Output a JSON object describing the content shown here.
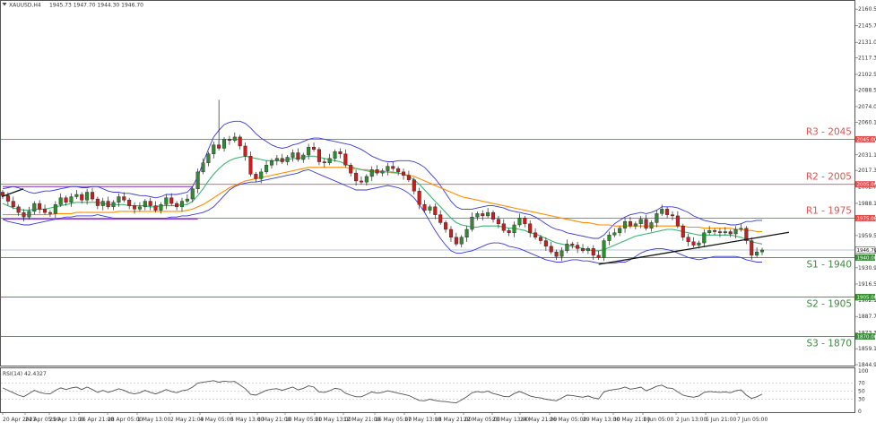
{
  "header": {
    "symbol": "XAUUSD,H4",
    "ohlc": "1945.73 1947.70 1944.30 1946.70"
  },
  "rsi_panel": {
    "label": "RSI(14) 42.4327"
  },
  "colors": {
    "candle_up": "#2e8b2e",
    "candle_down": "#c81e1e",
    "bollinger": "#3a3ad0",
    "ma_fast": "#3cb371",
    "ma_slow": "#ff8c00",
    "resistance": "#e05050",
    "support": "#3a8a3a",
    "range_line": "#7a2fbf",
    "trendline": "#111111",
    "rsi_line": "#505050"
  },
  "chart_data": [
    {
      "type": "candlestick",
      "instrument": "XAUUSD",
      "timeframe": "H4",
      "last_price": 1946.7,
      "x_tick_labels": [
        "20 Apr 2023",
        "24 Apr 05:00",
        "25 Apr 13:00",
        "26 Apr 21:00",
        "28 Apr 05:00",
        "1 May 13:00",
        "2 May 21:00",
        "4 May 05:00",
        "5 May 13:00",
        "8 May 21:00",
        "10 May 05:00",
        "11 May 13:00",
        "12 May 21:00",
        "16 May 05:00",
        "17 May 13:00",
        "18 May 21:00",
        "22 May 05:00",
        "23 May 13:00",
        "24 May 21:00",
        "26 May 05:00",
        "29 May 13:00",
        "30 May 21:00",
        "1 Jun 05:00",
        "2 Jun 13:00",
        "5 Jun 21:00",
        "7 Jun 05:00"
      ],
      "y_tick_labels": [
        "2160.50",
        "2145.75",
        "2131.05",
        "2117.30",
        "2102.55",
        "2088.50",
        "2074.00",
        "2060.10",
        "2045.45",
        "2031.15",
        "2017.35",
        "2002.70",
        "1988.10",
        "1973.55",
        "1959.50",
        "1945.30",
        "1930.90",
        "1916.50",
        "1902.10",
        "1887.70",
        "1873.30",
        "1859.10",
        "1844.90"
      ],
      "ylim": [
        1844.9,
        2167
      ],
      "levels": [
        {
          "name": "R3",
          "label": "R3 - 2045",
          "value": 2045,
          "price_tag": "2045.00",
          "kind": "resistance"
        },
        {
          "name": "R2",
          "label": "R2 - 2005",
          "value": 2005,
          "price_tag": "2005.00",
          "kind": "resistance"
        },
        {
          "name": "R1",
          "label": "R1 - 1975",
          "value": 1975,
          "price_tag": "1975.00",
          "kind": "resistance"
        },
        {
          "name": "S1",
          "label": "S1 - 1940",
          "value": 1940,
          "price_tag": "1940.00",
          "kind": "support"
        },
        {
          "name": "S2",
          "label": "S2 - 1905",
          "value": 1905,
          "price_tag": "1905.00",
          "kind": "support"
        },
        {
          "name": "S3",
          "label": "S3 - 1870",
          "value": 1870,
          "price_tag": "1870.00",
          "kind": "support"
        }
      ],
      "current_price_tag": "1946.70",
      "series": {
        "close": [
          1995,
          1990,
          1985,
          1980,
          1976,
          1981,
          1988,
          1983,
          1980,
          1979,
          1987,
          1993,
          1989,
          1994,
          1996,
          1991,
          1998,
          1992,
          1986,
          1990,
          1985,
          1989,
          1994,
          1991,
          1986,
          1983,
          1985,
          1990,
          1986,
          1982,
          1987,
          1993,
          1988,
          1985,
          1990,
          1992,
          2001,
          2016,
          2024,
          2032,
          2040,
          2037,
          2045,
          2044,
          2047,
          2039,
          2030,
          2014,
          2010,
          2016,
          2022,
          2026,
          2028,
          2025,
          2029,
          2033,
          2027,
          2031,
          2038,
          2036,
          2025,
          2024,
          2028,
          2034,
          2032,
          2022,
          2015,
          2008,
          2007,
          2012,
          2018,
          2015,
          2017,
          2021,
          2019,
          2016,
          2013,
          2009,
          1999,
          1987,
          1982,
          1985,
          1978,
          1971,
          1965,
          1958,
          1952,
          1958,
          1965,
          1976,
          1979,
          1977,
          1980,
          1974,
          1970,
          1964,
          1962,
          1969,
          1975,
          1970,
          1962,
          1958,
          1955,
          1950,
          1945,
          1941,
          1946,
          1952,
          1951,
          1948,
          1946,
          1948,
          1942,
          1940,
          1955,
          1960,
          1962,
          1966,
          1972,
          1968,
          1970,
          1974,
          1966,
          1971,
          1979,
          1983,
          1978,
          1977,
          1968,
          1958,
          1954,
          1951,
          1953,
          1962,
          1964,
          1963,
          1962,
          1963,
          1961,
          1965,
          1966,
          1955,
          1942,
          1945,
          1946.7
        ],
        "bb_upper": [
          2001,
          2002,
          2003,
          2002,
          2000,
          1998,
          1997,
          1998,
          1999,
          1999,
          2000,
          2001,
          2002,
          2003,
          2003,
          2002,
          2002,
          2003,
          2003,
          2001,
          1999,
          1998,
          1998,
          1997,
          1997,
          1996,
          1995,
          1995,
          1994,
          1993,
          1994,
          1996,
          1996,
          1996,
          1997,
          1998,
          2003,
          2012,
          2024,
          2036,
          2047,
          2053,
          2058,
          2060,
          2061,
          2061,
          2059,
          2055,
          2050,
          2046,
          2043,
          2040,
          2038,
          2037,
          2038,
          2040,
          2041,
          2043,
          2045,
          2046,
          2046,
          2045,
          2044,
          2043,
          2042,
          2041,
          2040,
          2038,
          2036,
          2033,
          2030,
          2028,
          2026,
          2025,
          2025,
          2026,
          2026,
          2026,
          2025,
          2023,
          2020,
          2015,
          2010,
          2004,
          1997,
          1990,
          1985,
          1983,
          1983,
          1983,
          1984,
          1985,
          1986,
          1986,
          1985,
          1984,
          1982,
          1981,
          1980,
          1979,
          1978,
          1976,
          1973,
          1970,
          1967,
          1965,
          1964,
          1962,
          1961,
          1960,
          1959,
          1958,
          1957,
          1957,
          1960,
          1965,
          1970,
          1973,
          1976,
          1978,
          1979,
          1980,
          1979,
          1980,
          1982,
          1985,
          1985,
          1985,
          1984,
          1982,
          1980,
          1977,
          1975,
          1973,
          1972,
          1971,
          1970,
          1970,
          1969,
          1969,
          1970,
          1972,
          1972,
          1973,
          1973
        ],
        "bb_lower": [
          1974,
          1972,
          1971,
          1970,
          1969,
          1969,
          1970,
          1971,
          1972,
          1973,
          1974,
          1975,
          1976,
          1976,
          1977,
          1977,
          1977,
          1977,
          1978,
          1977,
          1976,
          1975,
          1975,
          1975,
          1975,
          1975,
          1975,
          1975,
          1975,
          1975,
          1975,
          1975,
          1976,
          1976,
          1977,
          1977,
          1978,
          1979,
          1980,
          1982,
          1985,
          1990,
          1995,
          2000,
          2003,
          2005,
          2006,
          2007,
          2007,
          2008,
          2009,
          2010,
          2011,
          2012,
          2013,
          2014,
          2015,
          2017,
          2018,
          2016,
          2014,
          2012,
          2010,
          2008,
          2006,
          2004,
          2002,
          2000,
          2000,
          2000,
          2001,
          2002,
          2003,
          2004,
          2003,
          2002,
          2000,
          1997,
          1993,
          1987,
          1980,
          1972,
          1964,
          1957,
          1951,
          1946,
          1944,
          1944,
          1945,
          1946,
          1948,
          1950,
          1952,
          1953,
          1953,
          1952,
          1950,
          1949,
          1948,
          1946,
          1944,
          1942,
          1940,
          1938,
          1937,
          1936,
          1936,
          1937,
          1938,
          1938,
          1937,
          1937,
          1936,
          1935,
          1935,
          1935,
          1935,
          1936,
          1936,
          1938,
          1941,
          1944,
          1946,
          1947,
          1948,
          1948,
          1947,
          1946,
          1944,
          1942,
          1940,
          1939,
          1938,
          1939,
          1940,
          1941,
          1941,
          1941,
          1941,
          1941,
          1940,
          1938,
          1937,
          1936,
          1936
        ],
        "ma_fast": [
          1988,
          1986,
          1984,
          1983,
          1982,
          1982,
          1983,
          1983,
          1983,
          1984,
          1985,
          1986,
          1987,
          1988,
          1989,
          1989,
          1989,
          1989,
          1989,
          1988,
          1987,
          1987,
          1987,
          1987,
          1986,
          1986,
          1986,
          1986,
          1985,
          1985,
          1986,
          1986,
          1986,
          1986,
          1987,
          1987,
          1990,
          1995,
          2001,
          2008,
          2014,
          2019,
          2023,
          2026,
          2028,
          2029,
          2030,
          2029,
          2028,
          2027,
          2026,
          2026,
          2026,
          2026,
          2027,
          2028,
          2028,
          2029,
          2030,
          2030,
          2029,
          2028,
          2027,
          2026,
          2025,
          2023,
          2021,
          2019,
          2018,
          2017,
          2016,
          2016,
          2016,
          2016,
          2016,
          2015,
          2014,
          2012,
          2009,
          2005,
          2000,
          1995,
          1990,
          1985,
          1980,
          1975,
          1971,
          1969,
          1968,
          1967,
          1967,
          1968,
          1968,
          1968,
          1968,
          1967,
          1966,
          1966,
          1965,
          1964,
          1962,
          1961,
          1959,
          1957,
          1955,
          1953,
          1952,
          1951,
          1950,
          1949,
          1948,
          1947,
          1946,
          1946,
          1947,
          1949,
          1951,
          1953,
          1955,
          1957,
          1959,
          1960,
          1961,
          1962,
          1963,
          1964,
          1965,
          1965,
          1964,
          1963,
          1962,
          1961,
          1960,
          1960,
          1960,
          1960,
          1960,
          1960,
          1960,
          1959,
          1958,
          1956,
          1954,
          1953,
          1952
        ],
        "ma_slow": [
          1978,
          1978,
          1978,
          1978,
          1978,
          1978,
          1978,
          1978,
          1978,
          1978,
          1979,
          1979,
          1979,
          1979,
          1980,
          1980,
          1980,
          1980,
          1980,
          1980,
          1980,
          1980,
          1981,
          1981,
          1981,
          1981,
          1981,
          1981,
          1981,
          1981,
          1981,
          1981,
          1981,
          1981,
          1981,
          1982,
          1983,
          1985,
          1987,
          1990,
          1993,
          1996,
          1999,
          2002,
          2004,
          2006,
          2008,
          2009,
          2010,
          2011,
          2012,
          2013,
          2014,
          2015,
          2016,
          2017,
          2018,
          2019,
          2020,
          2020,
          2020,
          2020,
          2020,
          2020,
          2020,
          2020,
          2019,
          2019,
          2018,
          2018,
          2017,
          2017,
          2016,
          2016,
          2015,
          2015,
          2014,
          2013,
          2012,
          2010,
          2008,
          2006,
          2004,
          2002,
          2000,
          1998,
          1996,
          1994,
          1993,
          1992,
          1991,
          1990,
          1989,
          1988,
          1987,
          1986,
          1985,
          1984,
          1983,
          1982,
          1981,
          1980,
          1979,
          1978,
          1977,
          1976,
          1975,
          1974,
          1973,
          1972,
          1971,
          1971,
          1970,
          1969,
          1969,
          1969,
          1968,
          1968,
          1968,
          1968,
          1968,
          1968,
          1968,
          1968,
          1968,
          1968,
          1968,
          1968,
          1968,
          1968,
          1967,
          1967,
          1967,
          1966,
          1966,
          1966,
          1966,
          1966,
          1966,
          1965,
          1965,
          1964,
          1964,
          1963,
          1963
        ]
      },
      "trendline": {
        "from": {
          "bar": 113,
          "price": 1934
        },
        "to": {
          "bar": 147,
          "price": 1960
        }
      },
      "range_lines": [
        {
          "from": {
            "bar": 0,
            "price": 2003
          },
          "to": {
            "bar": 36,
            "price": 2003
          }
        },
        {
          "from": {
            "bar": 0,
            "price": 1974
          },
          "to": {
            "bar": 37,
            "price": 1974
          }
        }
      ]
    },
    {
      "type": "line",
      "name": "RSI(14)",
      "value": 42.4327,
      "ylim": [
        0,
        100
      ],
      "y_tick_labels": [
        "100",
        "70",
        "50",
        "30",
        "0"
      ],
      "guide_levels": [
        70,
        50,
        30
      ],
      "values": [
        58,
        52,
        46,
        40,
        36,
        44,
        52,
        47,
        44,
        43,
        52,
        58,
        54,
        58,
        60,
        54,
        60,
        54,
        47,
        52,
        47,
        51,
        56,
        52,
        46,
        43,
        46,
        52,
        47,
        43,
        48,
        54,
        49,
        46,
        51,
        53,
        60,
        70,
        72,
        74,
        76,
        72,
        75,
        73,
        74,
        65,
        56,
        42,
        40,
        46,
        52,
        55,
        56,
        52,
        56,
        60,
        53,
        57,
        63,
        60,
        48,
        47,
        51,
        57,
        55,
        45,
        40,
        36,
        36,
        42,
        48,
        45,
        47,
        51,
        48,
        45,
        42,
        39,
        33,
        27,
        26,
        30,
        27,
        25,
        24,
        22,
        21,
        28,
        36,
        46,
        49,
        47,
        50,
        44,
        41,
        37,
        36,
        44,
        49,
        44,
        38,
        35,
        33,
        30,
        28,
        26,
        33,
        40,
        39,
        37,
        35,
        38,
        33,
        31,
        48,
        52,
        54,
        56,
        60,
        55,
        57,
        60,
        51,
        56,
        62,
        65,
        58,
        57,
        48,
        40,
        37,
        35,
        38,
        47,
        49,
        48,
        47,
        48,
        46,
        51,
        53,
        40,
        32,
        36,
        42.4
      ]
    }
  ]
}
